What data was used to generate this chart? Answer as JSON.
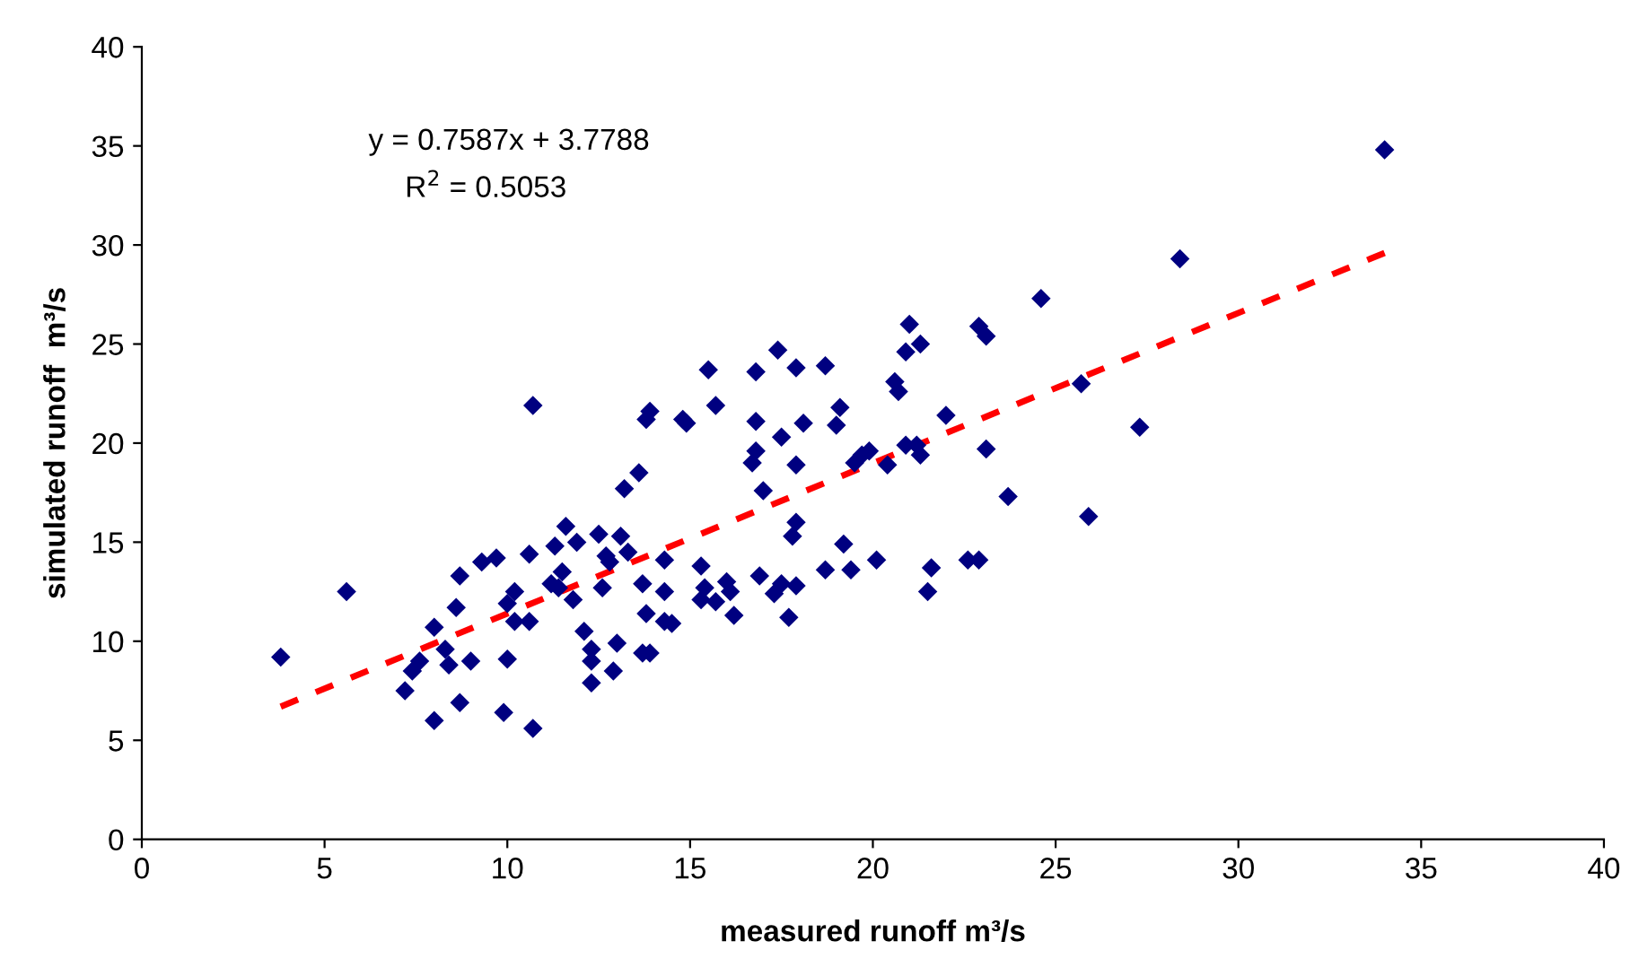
{
  "chart_data": {
    "type": "scatter",
    "xlabel": "measured runoff m³/s",
    "ylabel": "simulated runoff  m³/s",
    "xlim": [
      0,
      40
    ],
    "ylim": [
      0,
      40
    ],
    "xticks": [
      0,
      5,
      10,
      15,
      20,
      25,
      30,
      35,
      40
    ],
    "yticks": [
      0,
      5,
      10,
      15,
      20,
      25,
      30,
      35,
      40
    ],
    "grid": false,
    "legend": false,
    "annotations": [
      "y = 0.7587x + 3.7788",
      "R$^{2}$ = 0.5053"
    ],
    "series": [
      {
        "color": "#000080",
        "marker": "diamond",
        "x": [
          3.8,
          5.6,
          7.2,
          7.4,
          7.6,
          8.0,
          8.0,
          8.3,
          8.4,
          8.6,
          8.7,
          8.7,
          9.0,
          9.3,
          9.7,
          9.9,
          10.0,
          10.0,
          10.2,
          10.2,
          10.6,
          10.6,
          10.7,
          10.7,
          11.2,
          11.3,
          11.4,
          11.5,
          11.6,
          11.8,
          11.9,
          12.1,
          12.3,
          12.3,
          12.3,
          12.5,
          12.6,
          12.7,
          12.8,
          12.9,
          13.0,
          13.1,
          13.2,
          13.3,
          13.6,
          13.7,
          13.7,
          13.8,
          13.8,
          13.9,
          13.9,
          14.3,
          14.3,
          14.3,
          14.5,
          14.8,
          14.9,
          15.3,
          15.3,
          15.4,
          15.5,
          15.7,
          15.7,
          16.0,
          16.1,
          16.2,
          16.7,
          16.8,
          16.8,
          16.8,
          16.9,
          17.0,
          17.3,
          17.4,
          17.5,
          17.5,
          17.7,
          17.8,
          17.9,
          17.9,
          17.9,
          17.9,
          18.1,
          18.7,
          18.7,
          19.0,
          19.1,
          19.2,
          19.4,
          19.5,
          19.7,
          19.9,
          20.1,
          20.4,
          20.6,
          20.7,
          20.9,
          20.9,
          21.0,
          21.2,
          21.3,
          21.3,
          21.5,
          21.6,
          22.0,
          22.6,
          22.9,
          22.9,
          23.1,
          23.1,
          23.7,
          24.6,
          25.7,
          25.9,
          27.3,
          28.4,
          34.0
        ],
        "values": [
          9.2,
          12.5,
          7.5,
          8.5,
          9.0,
          10.7,
          6.0,
          9.6,
          8.8,
          11.7,
          13.3,
          6.9,
          9.0,
          14.0,
          14.2,
          6.4,
          9.1,
          11.9,
          12.5,
          11.0,
          11.0,
          14.4,
          21.9,
          5.6,
          12.9,
          14.8,
          12.7,
          13.5,
          15.8,
          12.1,
          15.0,
          10.5,
          9.6,
          9.0,
          7.9,
          15.4,
          12.7,
          14.3,
          14.0,
          8.5,
          9.9,
          15.3,
          17.7,
          14.5,
          18.5,
          12.9,
          9.4,
          11.4,
          21.2,
          21.6,
          9.4,
          14.1,
          12.5,
          11.0,
          10.9,
          21.2,
          21.0,
          13.8,
          12.1,
          12.7,
          23.7,
          21.9,
          12.0,
          13.0,
          12.5,
          11.3,
          19.0,
          19.6,
          21.1,
          23.6,
          13.3,
          17.6,
          12.4,
          24.7,
          20.3,
          12.9,
          11.2,
          15.3,
          23.8,
          18.9,
          16.0,
          12.8,
          21.0,
          23.9,
          13.6,
          20.9,
          21.8,
          14.9,
          13.6,
          19.0,
          19.4,
          19.6,
          14.1,
          18.9,
          23.1,
          22.6,
          19.9,
          24.6,
          26.0,
          19.9,
          25.0,
          19.4,
          12.5,
          13.7,
          21.4,
          14.1,
          14.1,
          25.9,
          25.4,
          19.7,
          17.3,
          27.3,
          23.0,
          16.3,
          20.8,
          29.3,
          34.8
        ]
      },
      {
        "type": "line",
        "color": "#ff0000",
        "marker": "none",
        "line_style": "dashed",
        "x": [
          3.8,
          34.0
        ],
        "values": [
          6.7,
          29.6
        ]
      }
    ]
  }
}
